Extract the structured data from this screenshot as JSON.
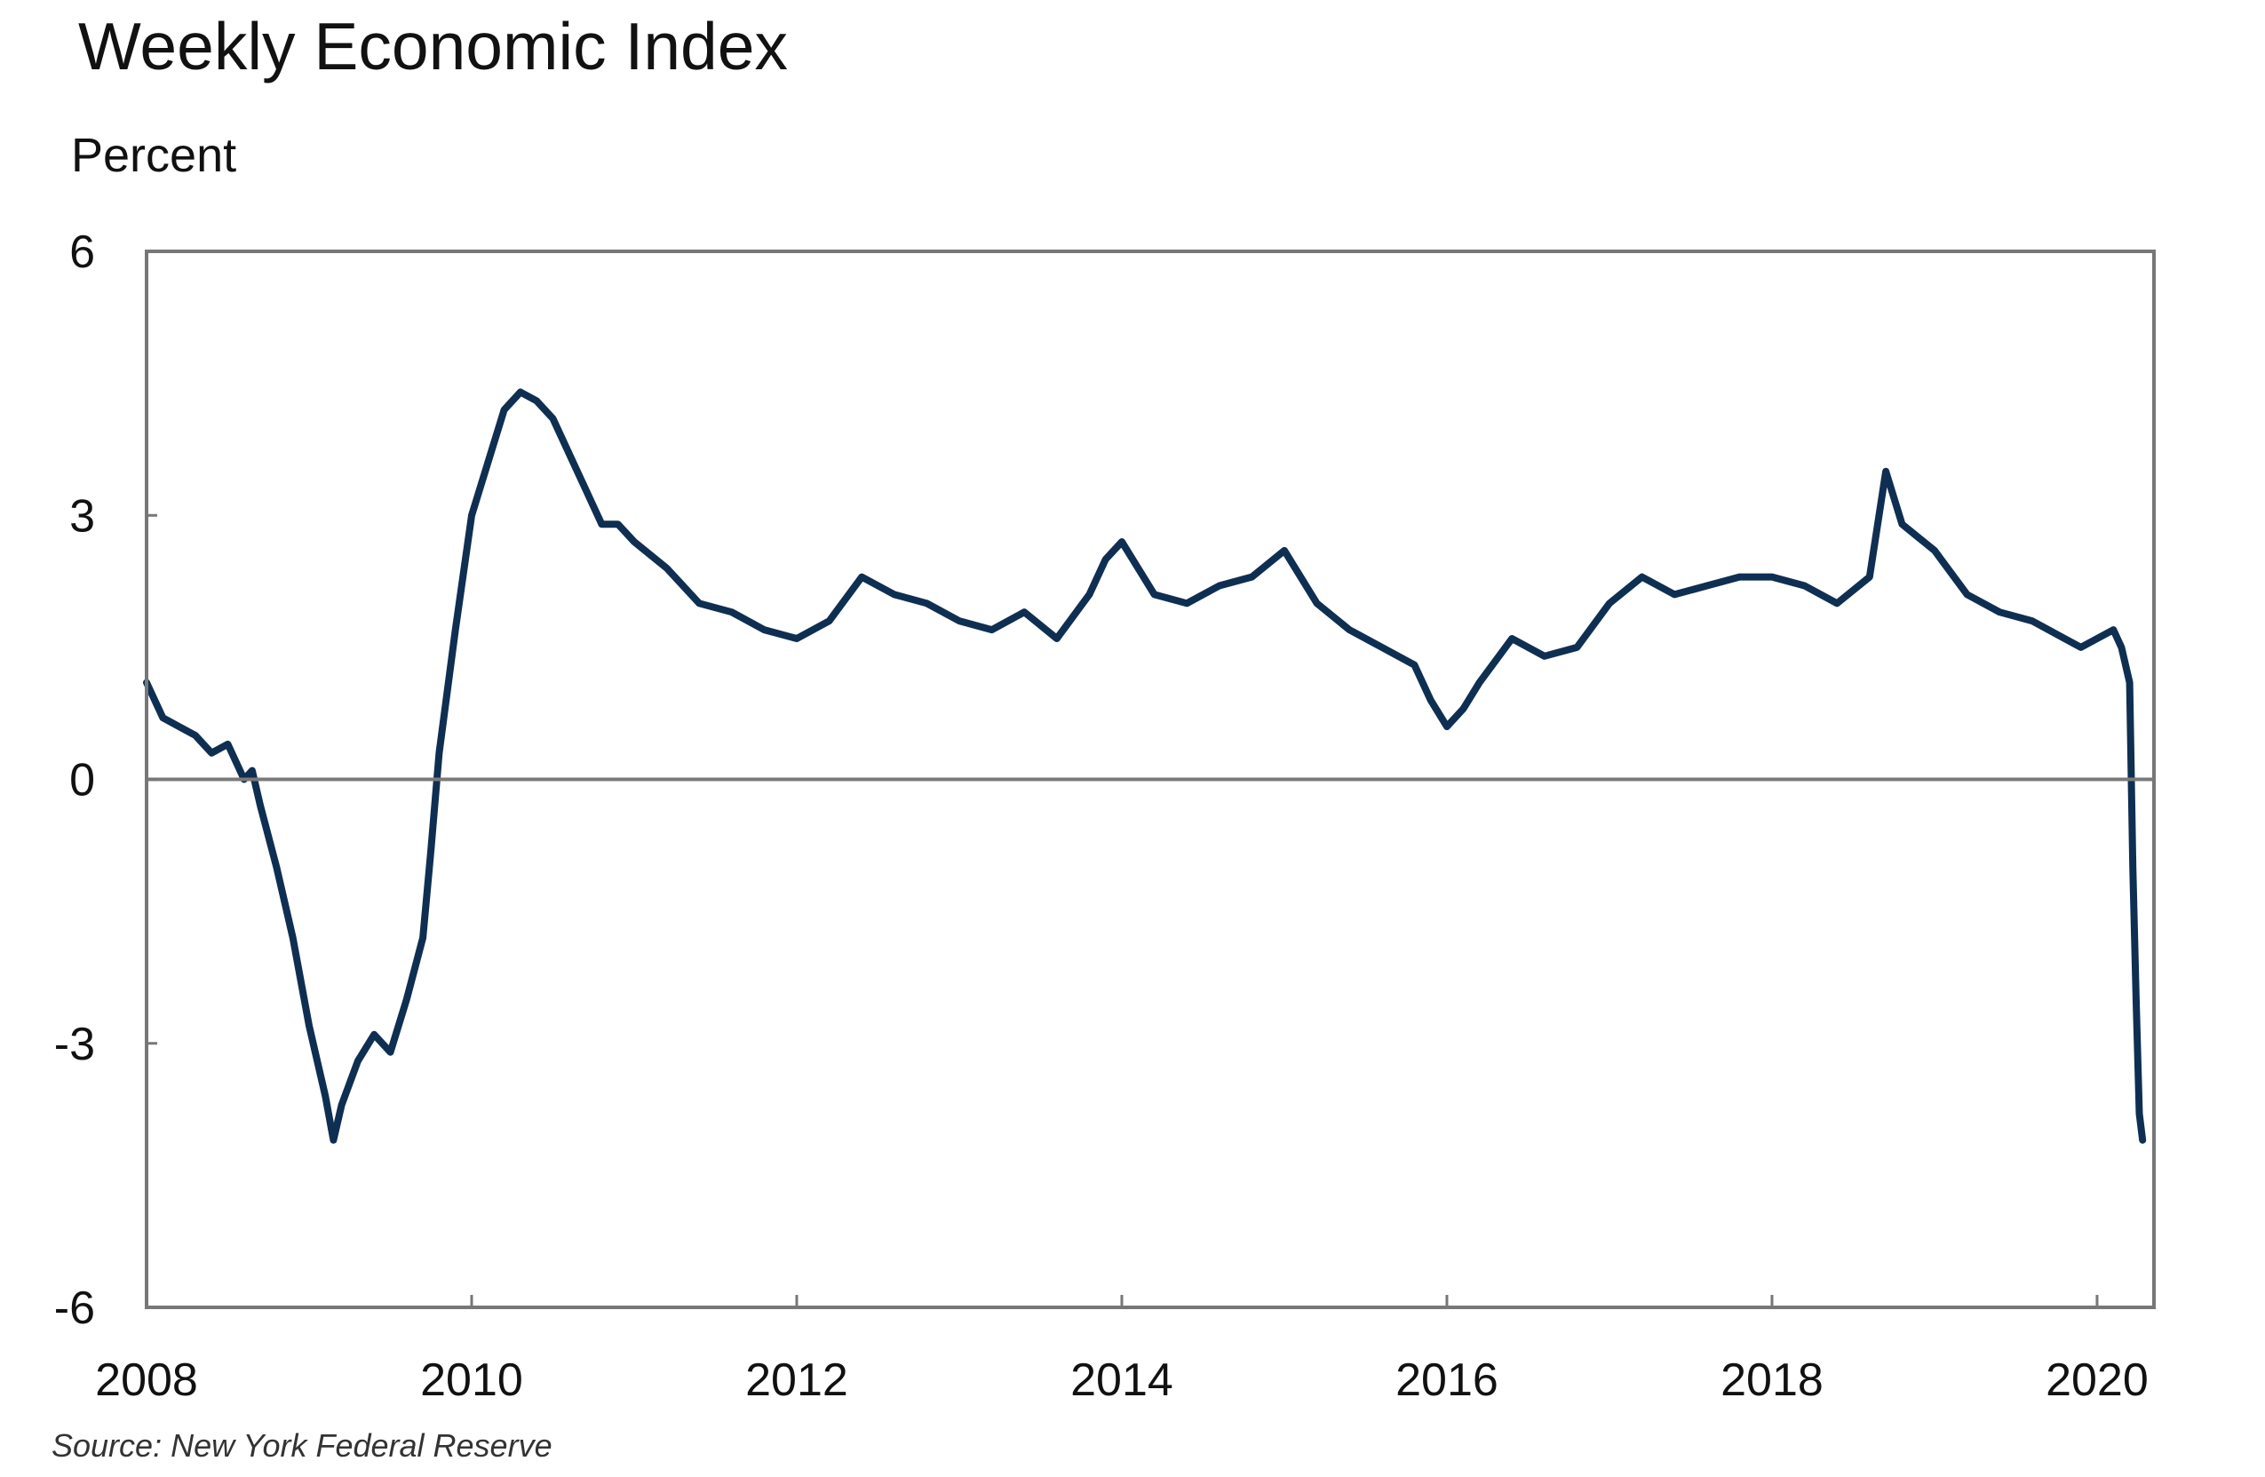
{
  "source_note": "Source: New York Federal Reserve",
  "colors": {
    "series": "#0f2f52",
    "frame": "#777777",
    "zero_line": "#7a7a7a",
    "text": "#111111"
  },
  "chart_data": {
    "type": "line",
    "title": "Weekly Economic Index",
    "ylabel": "Percent",
    "xlabel": "",
    "xlim": [
      2008.0,
      2020.35
    ],
    "ylim": [
      -6,
      6
    ],
    "x_ticks": [
      2008,
      2010,
      2012,
      2014,
      2016,
      2018,
      2020
    ],
    "x_tick_labels": [
      "2008",
      "2010",
      "2012",
      "2014",
      "2016",
      "2018",
      "2020"
    ],
    "y_ticks": [
      6,
      3,
      0,
      -3,
      -6
    ],
    "y_tick_labels": [
      "6",
      "3",
      "0",
      "-3",
      "-6"
    ],
    "reference_line": 0,
    "grid": false,
    "legend": "none",
    "series": [
      {
        "x": [
          2008.0,
          2008.1,
          2008.2,
          2008.3,
          2008.4,
          2008.5,
          2008.6,
          2008.65,
          2008.7,
          2008.8,
          2008.9,
          2009.0,
          2009.1,
          2009.15,
          2009.2,
          2009.3,
          2009.4,
          2009.5,
          2009.6,
          2009.7,
          2009.75,
          2009.8,
          2009.9,
          2010.0,
          2010.1,
          2010.2,
          2010.3,
          2010.4,
          2010.5,
          2010.6,
          2010.7,
          2010.8,
          2010.9,
          2011.0,
          2011.2,
          2011.4,
          2011.6,
          2011.8,
          2012.0,
          2012.2,
          2012.4,
          2012.6,
          2012.8,
          2013.0,
          2013.2,
          2013.4,
          2013.6,
          2013.8,
          2013.9,
          2014.0,
          2014.2,
          2014.4,
          2014.6,
          2014.8,
          2015.0,
          2015.2,
          2015.4,
          2015.6,
          2015.8,
          2015.9,
          2016.0,
          2016.1,
          2016.2,
          2016.4,
          2016.6,
          2016.8,
          2017.0,
          2017.2,
          2017.4,
          2017.6,
          2017.8,
          2018.0,
          2018.2,
          2018.4,
          2018.6,
          2018.7,
          2018.8,
          2019.0,
          2019.2,
          2019.4,
          2019.6,
          2019.8,
          2019.9,
          2020.0,
          2020.1,
          2020.15,
          2020.2,
          2020.22,
          2020.24,
          2020.26,
          2020.28
        ],
        "values": [
          1.1,
          0.7,
          0.6,
          0.5,
          0.3,
          0.4,
          0.0,
          0.1,
          -0.3,
          -1.0,
          -1.8,
          -2.8,
          -3.6,
          -4.1,
          -3.7,
          -3.2,
          -2.9,
          -3.1,
          -2.5,
          -1.8,
          -0.8,
          0.3,
          1.7,
          3.0,
          3.6,
          4.2,
          4.4,
          4.3,
          4.1,
          3.7,
          3.3,
          2.9,
          2.9,
          2.7,
          2.4,
          2.0,
          1.9,
          1.7,
          1.6,
          1.8,
          2.3,
          2.1,
          2.0,
          1.8,
          1.7,
          1.9,
          1.6,
          2.1,
          2.5,
          2.7,
          2.1,
          2.0,
          2.2,
          2.3,
          2.6,
          2.0,
          1.7,
          1.5,
          1.3,
          0.9,
          0.6,
          0.8,
          1.1,
          1.6,
          1.4,
          1.5,
          2.0,
          2.3,
          2.1,
          2.2,
          2.3,
          2.3,
          2.2,
          2.0,
          2.3,
          3.5,
          2.9,
          2.6,
          2.1,
          1.9,
          1.8,
          1.6,
          1.5,
          1.6,
          1.7,
          1.5,
          1.1,
          -1.0,
          -2.5,
          -3.8,
          -4.1
        ]
      }
    ]
  }
}
